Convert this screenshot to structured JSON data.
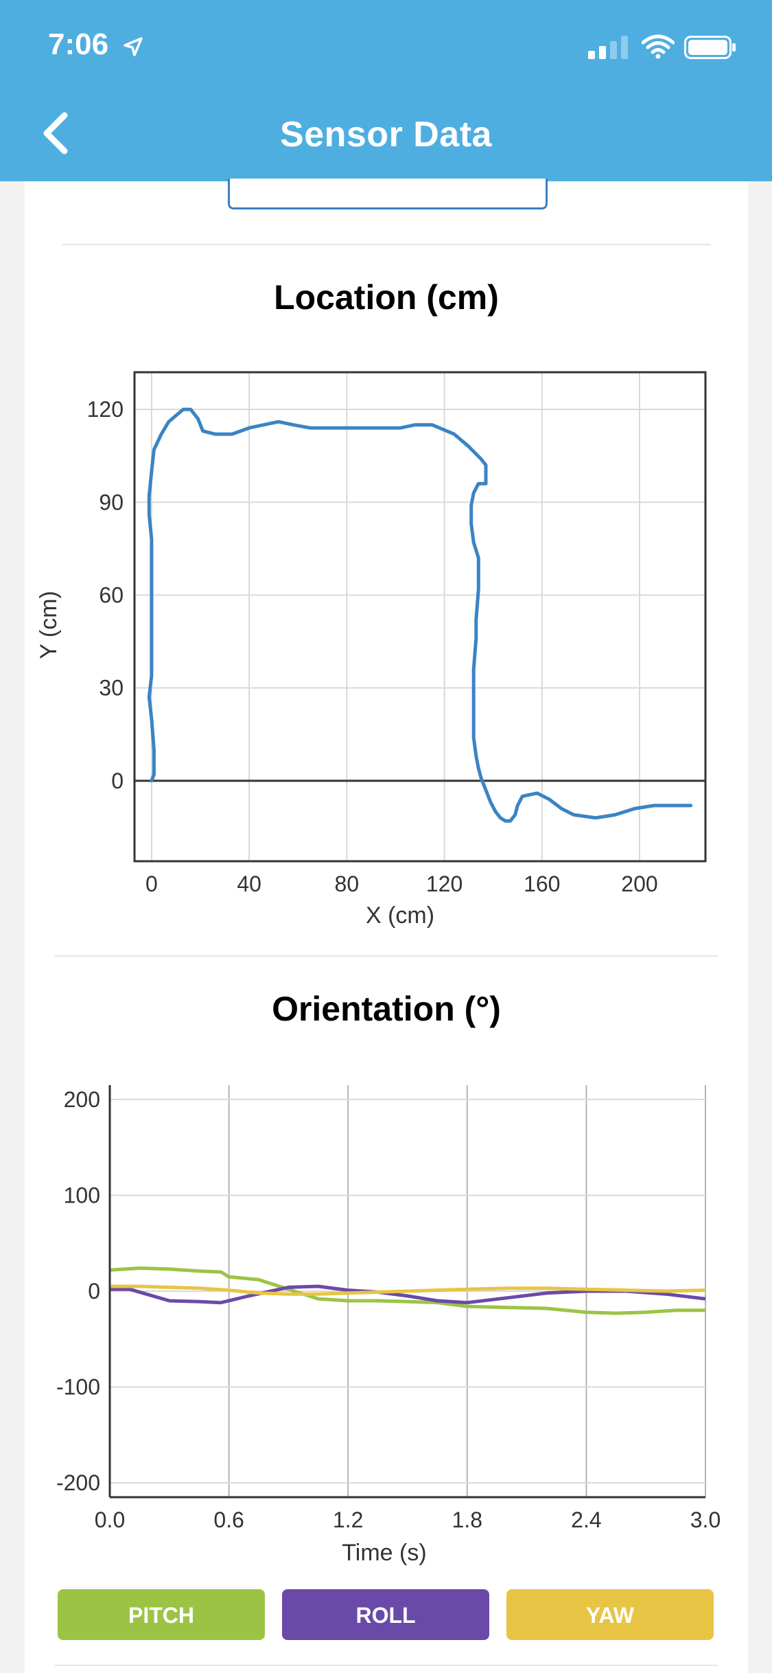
{
  "status": {
    "time": "7:06"
  },
  "nav": {
    "title": "Sensor Data"
  },
  "location": {
    "title": "Location (cm)",
    "chart_data": {
      "type": "line",
      "title": "Location (cm)",
      "xlabel": "X (cm)",
      "ylabel": "Y (cm)",
      "xlim": [
        -7,
        227
      ],
      "ylim": [
        -26,
        132
      ],
      "xticks": [
        0,
        40,
        80,
        120,
        160,
        200
      ],
      "yticks": [
        0,
        30,
        60,
        90,
        120
      ],
      "grid": true,
      "color": "#3a84c4",
      "points": [
        [
          0,
          0
        ],
        [
          1,
          2
        ],
        [
          1,
          10
        ],
        [
          0,
          20
        ],
        [
          -1,
          27
        ],
        [
          0,
          34
        ],
        [
          0,
          50
        ],
        [
          0,
          78
        ],
        [
          -1,
          86
        ],
        [
          -1,
          92
        ],
        [
          0,
          100
        ],
        [
          1,
          107
        ],
        [
          4,
          112
        ],
        [
          7,
          116
        ],
        [
          10,
          118
        ],
        [
          13,
          120
        ],
        [
          16,
          120
        ],
        [
          19,
          117
        ],
        [
          21,
          113
        ],
        [
          26,
          112
        ],
        [
          33,
          112
        ],
        [
          40,
          114
        ],
        [
          46,
          115
        ],
        [
          52,
          116
        ],
        [
          58,
          115
        ],
        [
          65,
          114
        ],
        [
          80,
          114
        ],
        [
          96,
          114
        ],
        [
          102,
          114
        ],
        [
          108,
          115
        ],
        [
          115,
          115
        ],
        [
          118,
          114
        ],
        [
          124,
          112
        ],
        [
          130,
          108
        ],
        [
          135,
          104
        ],
        [
          137,
          102
        ],
        [
          137,
          96
        ],
        [
          134,
          96
        ],
        [
          132,
          93
        ],
        [
          131,
          89
        ],
        [
          131,
          83
        ],
        [
          132,
          77
        ],
        [
          134,
          72
        ],
        [
          134,
          62
        ],
        [
          133,
          52
        ],
        [
          133,
          46
        ],
        [
          132,
          36
        ],
        [
          132,
          28
        ],
        [
          132,
          20
        ],
        [
          132,
          14
        ],
        [
          133,
          8
        ],
        [
          134,
          4
        ],
        [
          135,
          1
        ],
        [
          137,
          -3
        ],
        [
          139,
          -7
        ],
        [
          141,
          -10
        ],
        [
          143,
          -12
        ],
        [
          145,
          -13
        ],
        [
          147,
          -13
        ],
        [
          149,
          -11
        ],
        [
          150,
          -8
        ],
        [
          152,
          -5
        ],
        [
          158,
          -4
        ],
        [
          163,
          -6
        ],
        [
          168,
          -9
        ],
        [
          173,
          -11
        ],
        [
          182,
          -12
        ],
        [
          190,
          -11
        ],
        [
          198,
          -9
        ],
        [
          206,
          -8
        ],
        [
          214,
          -8
        ],
        [
          221,
          -8
        ]
      ]
    }
  },
  "orientation": {
    "title": "Orientation (°)",
    "chart_data": {
      "type": "line",
      "title": "Orientation (°)",
      "xlabel": "Time (s)",
      "ylabel": "",
      "xlim": [
        0,
        3.0
      ],
      "ylim": [
        -215,
        215
      ],
      "xticks": [
        "0.0",
        "0.6",
        "1.2",
        "1.8",
        "2.4",
        "3.0"
      ],
      "yticks": [
        200,
        100,
        0,
        -100,
        -200
      ],
      "grid": true,
      "series": [
        {
          "name": "PITCH",
          "color": "#9bc445",
          "x": [
            0,
            0.15,
            0.3,
            0.45,
            0.56,
            0.6,
            0.75,
            0.9,
            1.05,
            1.2,
            1.35,
            1.5,
            1.65,
            1.8,
            2.0,
            2.2,
            2.4,
            2.55,
            2.7,
            2.85,
            3.0
          ],
          "y": [
            22,
            24,
            23,
            21,
            20,
            15,
            12,
            2,
            -8,
            -10,
            -10,
            -11,
            -12,
            -16,
            -17,
            -18,
            -22,
            -23,
            -22,
            -20,
            -20
          ]
        },
        {
          "name": "ROLL",
          "color": "#6a4aa8",
          "x": [
            0,
            0.1,
            0.3,
            0.45,
            0.56,
            0.7,
            0.9,
            1.05,
            1.2,
            1.35,
            1.5,
            1.65,
            1.8,
            2.0,
            2.2,
            2.4,
            2.6,
            2.8,
            3.0
          ],
          "y": [
            2,
            2,
            -10,
            -11,
            -12,
            -5,
            4,
            5,
            1,
            -1,
            -5,
            -10,
            -12,
            -7,
            -2,
            0,
            0,
            -3,
            -8
          ]
        },
        {
          "name": "YAW",
          "color": "#e8c445",
          "x": [
            0,
            0.15,
            0.3,
            0.45,
            0.6,
            0.75,
            0.9,
            1.05,
            1.2,
            1.35,
            1.5,
            1.65,
            1.8,
            2.0,
            2.2,
            2.4,
            2.6,
            2.8,
            3.0
          ],
          "y": [
            5,
            5,
            4,
            3,
            1,
            -2,
            -3,
            -3,
            -2,
            -1,
            0,
            1,
            2,
            3,
            3,
            2,
            1,
            0,
            1
          ]
        }
      ]
    }
  }
}
